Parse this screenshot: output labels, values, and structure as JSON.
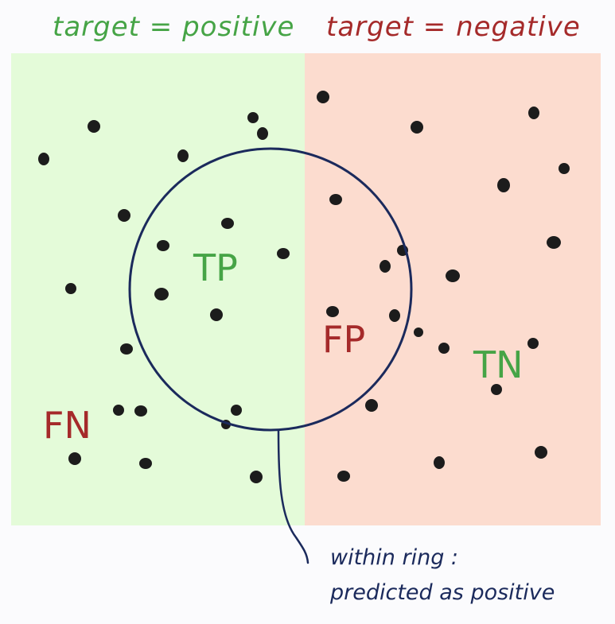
{
  "colors": {
    "positive_panel": "#e4fbd9",
    "negative_panel": "#fcdccf",
    "positive_text": "#46a446",
    "negative_text": "#a52a2a",
    "ring": "#1b2a5c",
    "dot": "#1c1c1c"
  },
  "headers": {
    "positive": "target = positive",
    "negative": "target = negative"
  },
  "labels": {
    "tp": "TP",
    "fp": "FP",
    "tn": "TN",
    "fn": "FN"
  },
  "annotation": {
    "line1": "within ring :",
    "line2": "predicted as positive"
  }
}
